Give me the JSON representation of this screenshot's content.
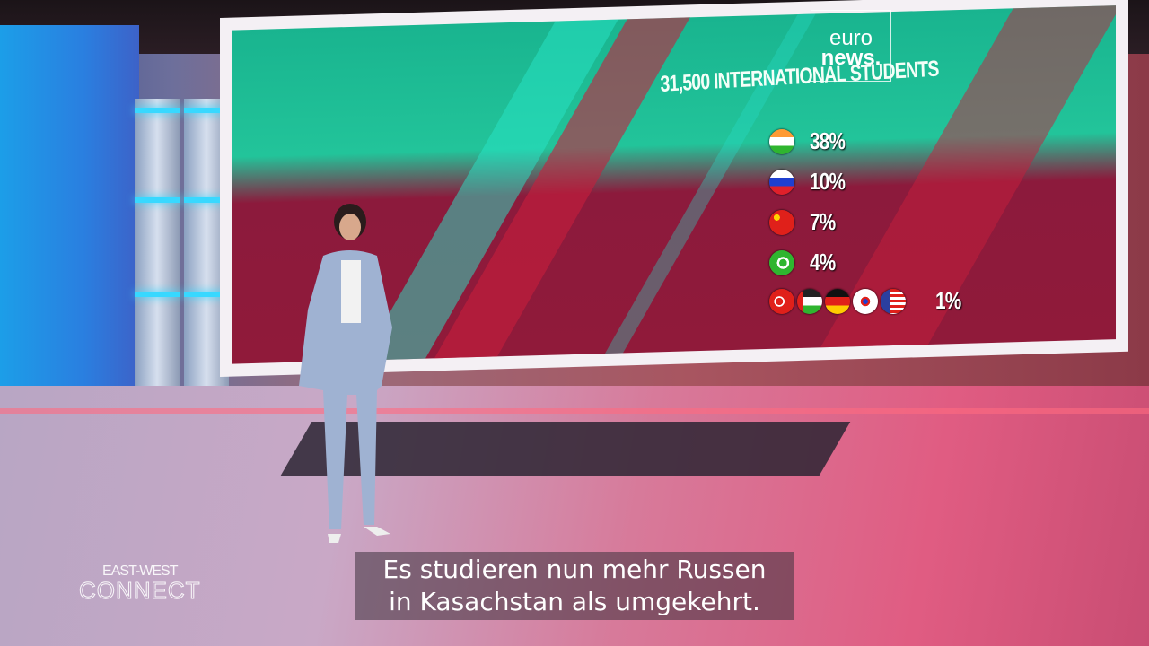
{
  "broadcaster_logo": {
    "line1": "euro",
    "line2": "news."
  },
  "infographic": {
    "title": "31,500 INTERNATIONAL STUDENTS",
    "rows": [
      {
        "flags": [
          "india-flag-icon"
        ],
        "percent": "38%"
      },
      {
        "flags": [
          "russia-flag-icon"
        ],
        "percent": "10%"
      },
      {
        "flags": [
          "china-flag-icon"
        ],
        "percent": "7%"
      },
      {
        "flags": [
          "pakistan-flag-icon"
        ],
        "percent": "4%"
      },
      {
        "flags": [
          "turkey-flag-icon",
          "jordan-flag-icon",
          "germany-flag-icon",
          "south-korea-flag-icon",
          "usa-flag-icon"
        ],
        "percent": "1%"
      }
    ]
  },
  "show_logo": {
    "line1": "EAST-WEST",
    "line2": "CONNECT"
  },
  "subtitle": {
    "line1": "Es studieren nun mehr Russen",
    "line2": "in Kasachstan als umgekehrt."
  },
  "colors": {
    "screen_green": "#1fbf96",
    "screen_red": "#8c1a3c",
    "accent_cyan": "#38d8ff"
  }
}
